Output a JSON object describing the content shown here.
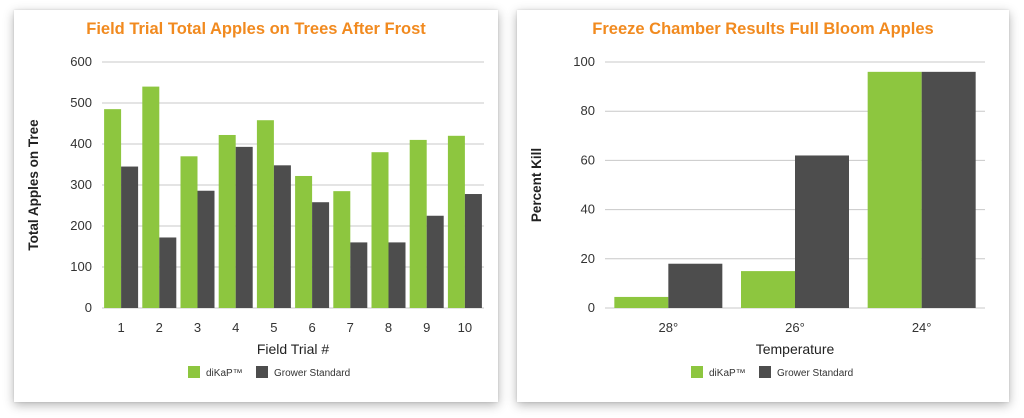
{
  "colors": {
    "dikap": "#8dc63f",
    "grower": "#4d4d4d",
    "title": "#f18a1f",
    "grid": "#c8c8c8"
  },
  "chart_data": [
    {
      "type": "bar",
      "title": "Field Trial Total Apples on Trees After Frost",
      "xlabel": "Field Trial #",
      "ylabel": "Total Apples on Tree",
      "ylim": [
        0,
        600
      ],
      "yticks": [
        0,
        100,
        200,
        300,
        400,
        500,
        600
      ],
      "categories": [
        "1",
        "2",
        "3",
        "4",
        "5",
        "6",
        "7",
        "8",
        "9",
        "10"
      ],
      "series": [
        {
          "name": "diKaP™",
          "values": [
            485,
            540,
            370,
            422,
            458,
            322,
            285,
            380,
            410,
            420
          ]
        },
        {
          "name": "Grower Standard",
          "values": [
            345,
            172,
            286,
            393,
            348,
            258,
            160,
            160,
            225,
            278
          ]
        }
      ],
      "grid": true,
      "legend": "bottom"
    },
    {
      "type": "bar",
      "title": "Freeze Chamber Results Full Bloom Apples",
      "xlabel": "Temperature",
      "ylabel": "Percent Kill",
      "ylim": [
        0,
        100
      ],
      "yticks": [
        0,
        20,
        40,
        60,
        80,
        100
      ],
      "categories": [
        "28°",
        "26°",
        "24°"
      ],
      "series": [
        {
          "name": "diKaP™",
          "values": [
            4.5,
            15,
            96
          ]
        },
        {
          "name": "Grower Standard",
          "values": [
            18,
            62,
            96
          ]
        }
      ],
      "grid": true,
      "legend": "bottom"
    }
  ]
}
